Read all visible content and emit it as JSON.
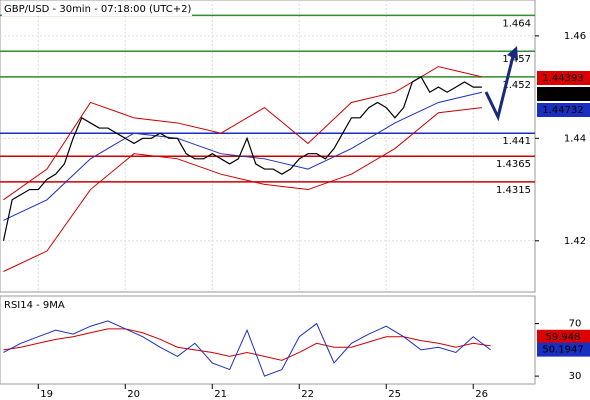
{
  "chart_data": [
    {
      "type": "line",
      "title": "GBP/USD - 30min - 07:18:00 (UTC+2)",
      "xlim": [
        -0.44,
        5.71
      ],
      "ylim": [
        1.41,
        1.467
      ],
      "xticks": [
        {
          "value": 0,
          "label": "19"
        },
        {
          "value": 1,
          "label": "20"
        },
        {
          "value": 2,
          "label": "21"
        },
        {
          "value": 3,
          "label": "22"
        },
        {
          "value": 4,
          "label": "25"
        },
        {
          "value": 5,
          "label": "26"
        }
      ],
      "yticks": [
        1.42,
        1.44,
        1.46
      ],
      "grid": true,
      "series": [
        {
          "color": "#000000",
          "width": 1.2,
          "x": [
            -0.4,
            -0.3,
            -0.2,
            -0.1,
            0,
            0.1,
            0.2,
            0.3,
            0.4,
            0.5,
            0.6,
            0.7,
            0.8,
            0.9,
            1,
            1.1,
            1.2,
            1.3,
            1.4,
            1.5,
            1.6,
            1.7,
            1.8,
            1.9,
            2,
            2.1,
            2.2,
            2.3,
            2.4,
            2.5,
            2.6,
            2.7,
            2.8,
            2.9,
            3,
            3.1,
            3.2,
            3.3,
            3.4,
            3.5,
            3.6,
            3.7,
            3.8,
            3.9,
            4,
            4.1,
            4.2,
            4.3,
            4.4,
            4.5,
            4.6,
            4.7,
            4.8,
            4.9,
            5,
            5.1
          ],
          "values": [
            1.42,
            1.428,
            1.429,
            1.43,
            1.43,
            1.432,
            1.433,
            1.435,
            1.44,
            1.444,
            1.443,
            1.442,
            1.442,
            1.441,
            1.44,
            1.439,
            1.44,
            1.44,
            1.441,
            1.44,
            1.44,
            1.437,
            1.436,
            1.436,
            1.437,
            1.436,
            1.435,
            1.436,
            1.44,
            1.435,
            1.434,
            1.434,
            1.433,
            1.434,
            1.436,
            1.437,
            1.437,
            1.436,
            1.438,
            1.441,
            1.444,
            1.444,
            1.446,
            1.447,
            1.446,
            1.444,
            1.446,
            1.451,
            1.452,
            1.449,
            1.45,
            1.449,
            1.45,
            1.451,
            1.45,
            1.45
          ]
        },
        {
          "color": "#cc0000",
          "width": 1,
          "x": [
            -0.4,
            0.1,
            0.6,
            1.1,
            1.6,
            2.1,
            2.6,
            3.1,
            3.6,
            4.1,
            4.6,
            5.1
          ],
          "values": [
            1.428,
            1.434,
            1.447,
            1.444,
            1.443,
            1.441,
            1.446,
            1.439,
            1.447,
            1.449,
            1.454,
            1.452
          ]
        },
        {
          "color": "#cc0000",
          "width": 1,
          "x": [
            -0.4,
            0.1,
            0.6,
            1.1,
            1.6,
            2.1,
            2.6,
            3.1,
            3.6,
            4.1,
            4.6,
            5.1
          ],
          "values": [
            1.414,
            1.418,
            1.43,
            1.437,
            1.436,
            1.433,
            1.431,
            1.43,
            1.433,
            1.438,
            1.445,
            1.446
          ]
        },
        {
          "color": "#1a2fbf",
          "width": 1,
          "x": [
            -0.4,
            0.1,
            0.6,
            1.1,
            1.6,
            2.1,
            2.6,
            3.1,
            3.6,
            4.1,
            4.6,
            5.1
          ],
          "values": [
            1.424,
            1.428,
            1.436,
            1.441,
            1.44,
            1.437,
            1.436,
            1.434,
            1.438,
            1.443,
            1.447,
            1.449
          ]
        }
      ],
      "levels": [
        {
          "value": 1.464,
          "color": "#2e8b2e"
        },
        {
          "value": 1.457,
          "color": "#2e8b2e"
        },
        {
          "value": 1.452,
          "color": "#2e8b2e"
        },
        {
          "value": 1.441,
          "color": "#1a2fbf"
        },
        {
          "value": 1.4365,
          "color": "#cc0000"
        },
        {
          "value": 1.4315,
          "color": "#cc0000"
        }
      ],
      "price_tags": [
        {
          "value": 1.44393,
          "color": "#dd0000"
        },
        {
          "value": 1.4487,
          "color": "#000000"
        },
        {
          "value": 1.44732,
          "color": "#1a2fbf"
        }
      ]
    },
    {
      "type": "line",
      "title": "RSI14 - 9MA",
      "xlim": [
        -0.44,
        5.71
      ],
      "ylim": [
        24,
        91
      ],
      "yticks": [
        30,
        70
      ],
      "series": [
        {
          "color": "#1a2fbf",
          "width": 1,
          "x": [
            -0.4,
            -0.2,
            0,
            0.2,
            0.4,
            0.6,
            0.8,
            1,
            1.2,
            1.4,
            1.6,
            1.8,
            2,
            2.2,
            2.4,
            2.6,
            2.8,
            3,
            3.2,
            3.4,
            3.6,
            3.8,
            4,
            4.2,
            4.4,
            4.6,
            4.8,
            5,
            5.2
          ],
          "values": [
            48,
            55,
            60,
            65,
            62,
            68,
            72,
            66,
            60,
            52,
            45,
            55,
            40,
            35,
            65,
            30,
            35,
            60,
            70,
            40,
            55,
            62,
            68,
            60,
            50,
            52,
            48,
            60,
            50
          ]
        },
        {
          "color": "#cc0000",
          "width": 1,
          "x": [
            -0.4,
            -0.2,
            0,
            0.2,
            0.4,
            0.6,
            0.8,
            1,
            1.2,
            1.4,
            1.6,
            1.8,
            2,
            2.2,
            2.4,
            2.6,
            2.8,
            3,
            3.2,
            3.4,
            3.6,
            3.8,
            4,
            4.2,
            4.4,
            4.6,
            4.8,
            5,
            5.2
          ],
          "values": [
            50,
            52,
            55,
            58,
            60,
            63,
            66,
            66,
            63,
            58,
            52,
            50,
            48,
            45,
            48,
            45,
            42,
            48,
            55,
            52,
            52,
            56,
            60,
            60,
            57,
            55,
            52,
            55,
            53
          ]
        }
      ],
      "tags": [
        {
          "value": 59.948,
          "color": "#dd0000"
        },
        {
          "value": 50.1947,
          "color": "#1a2fbf"
        }
      ]
    }
  ]
}
